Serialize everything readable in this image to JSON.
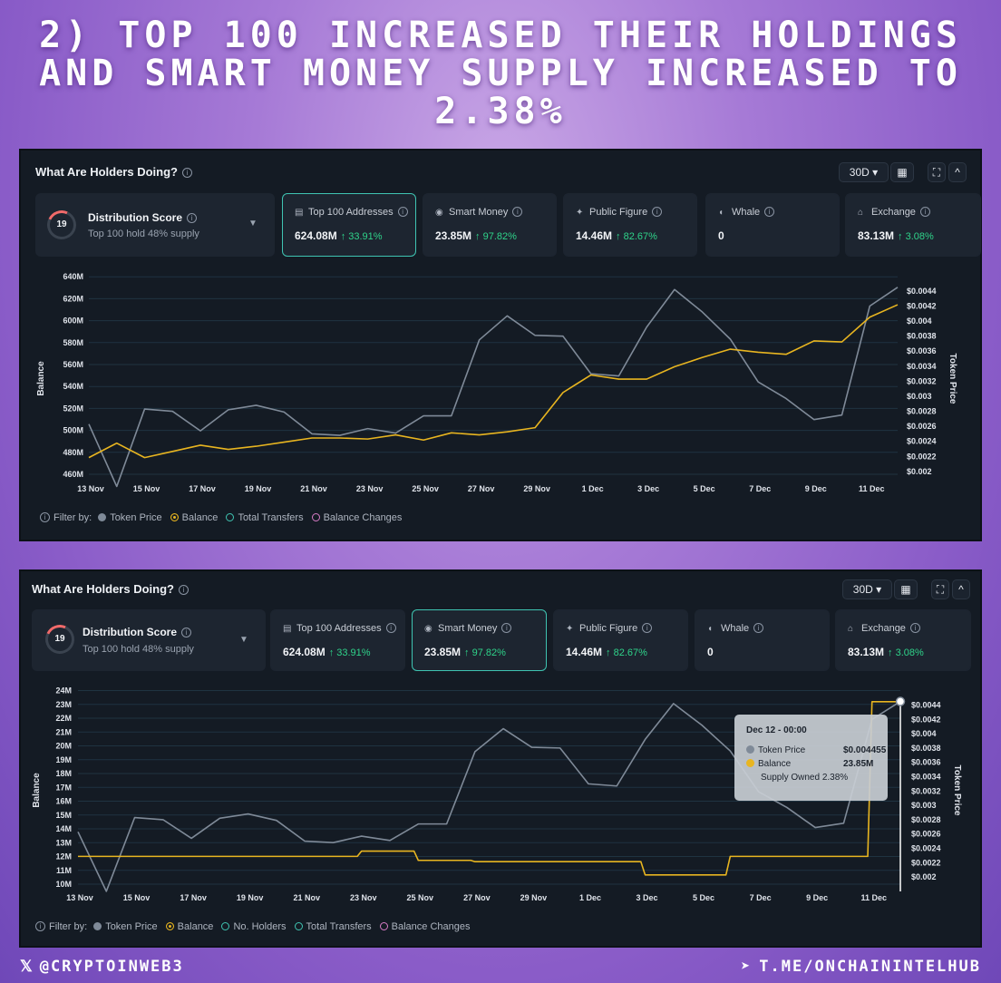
{
  "headline": "2) Top 100 increased their holdings and smart money supply increased to 2.38%",
  "footer": {
    "twitter_handle": "@CryptoInWeb3",
    "telegram": "T.ME/ONCHAININTELHUB"
  },
  "colors": {
    "price": "#7f8a98",
    "balance": "#e8b520",
    "accent": "#3fc4b2",
    "up": "#2fd38a"
  },
  "panels": [
    {
      "title": "What Are Holders Doing?",
      "period": "30D",
      "score": {
        "value": "19",
        "title": "Distribution Score",
        "subtitle": "Top 100 hold 48% supply"
      },
      "cards": [
        {
          "icon": "wallet-icon",
          "label": "Top 100 Addresses",
          "value": "624.08M",
          "change": "↑ 33.91%",
          "active": true
        },
        {
          "icon": "brain-icon",
          "label": "Smart Money",
          "value": "23.85M",
          "change": "↑ 97.82%",
          "active": false
        },
        {
          "icon": "star-icon",
          "label": "Public Figure",
          "value": "14.46M",
          "change": "↑ 82.67%",
          "active": false
        },
        {
          "icon": "whale-icon",
          "label": "Whale",
          "value": "0",
          "change": "",
          "active": false
        },
        {
          "icon": "bank-icon",
          "label": "Exchange",
          "value": "83.13M",
          "change": "↑ 3.08%",
          "active": false
        }
      ],
      "filter": {
        "label": "Filter by:",
        "items": [
          "Token Price",
          "Balance",
          "Total Transfers",
          "Balance Changes"
        ]
      }
    },
    {
      "title": "What Are Holders Doing?",
      "period": "30D",
      "score": {
        "value": "19",
        "title": "Distribution Score",
        "subtitle": "Top 100 hold 48% supply"
      },
      "cards": [
        {
          "icon": "wallet-icon",
          "label": "Top 100 Addresses",
          "value": "624.08M",
          "change": "↑ 33.91%",
          "active": false
        },
        {
          "icon": "brain-icon",
          "label": "Smart Money",
          "value": "23.85M",
          "change": "↑ 97.82%",
          "active": true
        },
        {
          "icon": "star-icon",
          "label": "Public Figure",
          "value": "14.46M",
          "change": "↑ 82.67%",
          "active": false
        },
        {
          "icon": "whale-icon",
          "label": "Whale",
          "value": "0",
          "change": "",
          "active": false
        },
        {
          "icon": "bank-icon",
          "label": "Exchange",
          "value": "83.13M",
          "change": "↑ 3.08%",
          "active": false
        }
      ],
      "filter": {
        "label": "Filter by:",
        "items": [
          "Token Price",
          "Balance",
          "No. Holders",
          "Total Transfers",
          "Balance Changes"
        ]
      },
      "tooltip": {
        "date": "Dec 12 - 00:00",
        "rows": [
          {
            "label": "Token Price",
            "value": "$0.004455"
          },
          {
            "label": "Balance",
            "value": "23.85M"
          },
          {
            "label": "Supply Owned",
            "value": "2.38%"
          }
        ]
      }
    }
  ],
  "chart_data": [
    {
      "type": "line",
      "title": "Top 100 Addresses",
      "xlabel": "",
      "ylabel": "Balance",
      "y2label": "Token Price",
      "x_tick_labels": [
        "13 Nov",
        "15 Nov",
        "17 Nov",
        "19 Nov",
        "21 Nov",
        "23 Nov",
        "25 Nov",
        "27 Nov",
        "29 Nov",
        "1 Dec",
        "3 Dec",
        "5 Dec",
        "7 Dec",
        "9 Dec",
        "11 Dec"
      ],
      "y_tick_labels": [
        "460M",
        "480M",
        "500M",
        "520M",
        "540M",
        "560M",
        "580M",
        "600M",
        "620M",
        "640M"
      ],
      "y2_tick_labels": [
        "$0.002",
        "$0.0022",
        "$0.0024",
        "$0.0026",
        "$0.0028",
        "$0.003",
        "$0.0032",
        "$0.0034",
        "$0.0036",
        "$0.0038",
        "$0.004",
        "$0.0042",
        "$0.0044"
      ],
      "ylim": [
        458,
        645
      ],
      "y2lim": [
        0.00195,
        0.00452
      ],
      "series": [
        {
          "name": "Token Price",
          "axis": "right",
          "values": [
            0.00263,
            0.0018,
            0.00283,
            0.0028,
            0.00254,
            0.00282,
            0.00288,
            0.00279,
            0.0025,
            0.00248,
            0.00257,
            0.00251,
            0.00274,
            0.00274,
            0.00375,
            0.00407,
            0.00381,
            0.0038,
            0.0033,
            0.00327,
            0.00392,
            0.00442,
            0.00412,
            0.00376,
            0.00319,
            0.00297,
            0.00269,
            0.00275,
            0.0042,
            0.00445
          ]
        },
        {
          "name": "Balance",
          "axis": "left",
          "values": [
            475,
            489,
            475,
            481,
            487,
            483,
            486,
            490,
            494,
            494,
            493,
            497,
            492,
            499,
            497,
            500,
            504,
            538,
            555,
            551,
            551,
            563,
            572,
            580,
            577,
            575,
            588,
            587,
            611,
            623
          ]
        }
      ]
    },
    {
      "type": "line",
      "title": "Smart Money",
      "xlabel": "",
      "ylabel": "Balance",
      "y2label": "Token Price",
      "x_tick_labels": [
        "13 Nov",
        "15 Nov",
        "17 Nov",
        "19 Nov",
        "21 Nov",
        "23 Nov",
        "25 Nov",
        "27 Nov",
        "29 Nov",
        "1 Dec",
        "3 Dec",
        "5 Dec",
        "7 Dec",
        "9 Dec",
        "11 Dec"
      ],
      "y_tick_labels": [
        "10M",
        "11M",
        "12M",
        "13M",
        "14M",
        "15M",
        "16M",
        "17M",
        "18M",
        "19M",
        "20M",
        "21M",
        "22M",
        "23M",
        "24M"
      ],
      "y2_tick_labels": [
        "$0.002",
        "$0.0022",
        "$0.0024",
        "$0.0026",
        "$0.0028",
        "$0.003",
        "$0.0032",
        "$0.0034",
        "$0.0036",
        "$0.0038",
        "$0.004",
        "$0.0042",
        "$0.0044"
      ],
      "ylim": [
        10,
        24.2
      ],
      "y2lim": [
        0.0019,
        0.00452
      ],
      "series": [
        {
          "name": "Token Price",
          "axis": "right",
          "values": [
            0.00263,
            0.0018,
            0.00283,
            0.0028,
            0.00254,
            0.00282,
            0.00288,
            0.00279,
            0.0025,
            0.00248,
            0.00257,
            0.00251,
            0.00274,
            0.00274,
            0.00375,
            0.00407,
            0.00381,
            0.0038,
            0.0033,
            0.00327,
            0.00392,
            0.00442,
            0.00412,
            0.00376,
            0.00319,
            0.00297,
            0.00269,
            0.00275,
            0.0042,
            0.00445
          ]
        },
        {
          "name": "Balance",
          "axis": "left",
          "values": [
            12.1,
            12.1,
            12.1,
            12.1,
            12.1,
            12.1,
            12.1,
            12.1,
            12.1,
            12.1,
            12.5,
            12.5,
            11.8,
            11.8,
            11.7,
            11.7,
            11.7,
            11.7,
            11.7,
            11.7,
            10.7,
            10.7,
            10.7,
            12.1,
            12.1,
            12.1,
            12.1,
            12.1,
            23.8,
            23.85
          ]
        }
      ]
    }
  ]
}
